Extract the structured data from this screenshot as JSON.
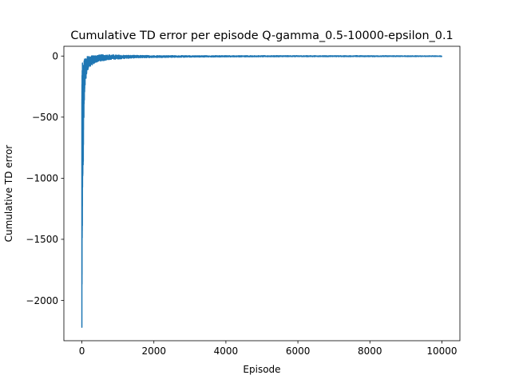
{
  "chart_data": {
    "type": "line",
    "title": "Cumulative TD error per episode Q-gamma_0.5-10000-epsilon_0.1",
    "xlabel": "Episode",
    "ylabel": "Cumulative TD error",
    "xlim": [
      -500,
      10500
    ],
    "ylim": [
      -2330,
      80
    ],
    "xticks": [
      0,
      2000,
      4000,
      6000,
      8000,
      10000
    ],
    "xtick_labels": [
      "0",
      "2000",
      "4000",
      "6000",
      "8000",
      "10000"
    ],
    "yticks": [
      0,
      -500,
      -1000,
      -1500,
      -2000
    ],
    "ytick_labels": [
      "0",
      "−500",
      "−1000",
      "−1500",
      "−2000"
    ],
    "grid": false,
    "legend": "none",
    "series": [
      {
        "color": "#1f77b4",
        "x_range": [
          0,
          10000
        ],
        "x": [
          0,
          10,
          20,
          30,
          40,
          50,
          60,
          70,
          80,
          90,
          100,
          120,
          140,
          160,
          180,
          200,
          250,
          300,
          350,
          400,
          500,
          600,
          700,
          800,
          1000,
          1200,
          1500,
          2000,
          3000,
          4000,
          6000,
          8000,
          10000
        ],
        "envelope_low": [
          -2220,
          -1650,
          -1100,
          -950,
          -860,
          -700,
          -520,
          -420,
          -340,
          -260,
          -220,
          -170,
          -140,
          -120,
          -100,
          -95,
          -80,
          -70,
          -60,
          -50,
          -42,
          -38,
          -32,
          -28,
          -24,
          -20,
          -15,
          -12,
          -9,
          -7,
          -5,
          -5,
          -4
        ],
        "envelope_high": [
          -40,
          -60,
          -30,
          -20,
          -10,
          -5,
          -15,
          -30,
          -20,
          -10,
          -5,
          -5,
          -5,
          0,
          0,
          0,
          0,
          5,
          5,
          8,
          10,
          10,
          10,
          10,
          8,
          6,
          5,
          4,
          3,
          3,
          3,
          3,
          2
        ]
      }
    ]
  }
}
